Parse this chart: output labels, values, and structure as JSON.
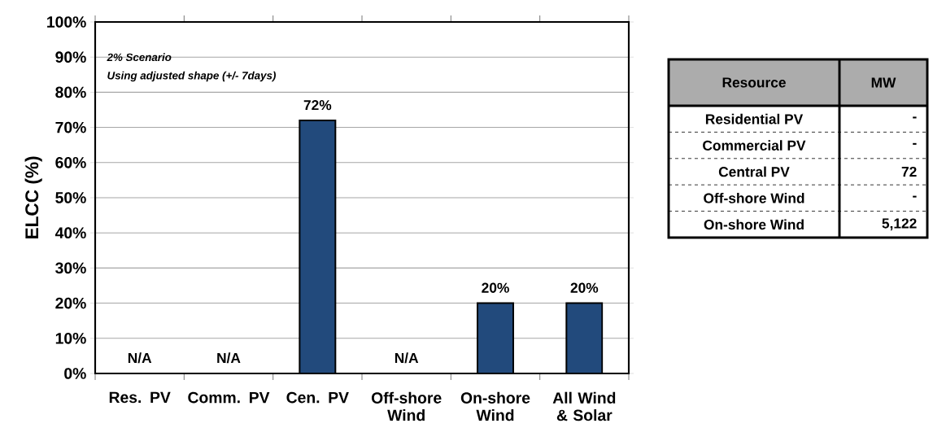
{
  "chart_data": [
    {
      "type": "bar",
      "ylabel": "ELCC (%)",
      "categories": [
        "Res. PV",
        "Comm. PV",
        "Cen. PV",
        "Off-shore Wind",
        "On-shore Wind",
        "All Wind & Solar"
      ],
      "values": [
        null,
        null,
        72,
        null,
        20,
        20
      ],
      "value_labels": [
        "N/A",
        "N/A",
        "72%",
        "N/A",
        "20%",
        "20%"
      ],
      "color": "#224a7c",
      "ylim": [
        0,
        100
      ],
      "yticks": [
        {
          "value": 0,
          "label": "0%"
        },
        {
          "value": 10,
          "label": "10%"
        },
        {
          "value": 20,
          "label": "20%"
        },
        {
          "value": 30,
          "label": "30%"
        },
        {
          "value": 40,
          "label": "40%"
        },
        {
          "value": 50,
          "label": "50%"
        },
        {
          "value": 60,
          "label": "60%"
        },
        {
          "value": 70,
          "label": "70%"
        },
        {
          "value": 80,
          "label": "80%"
        },
        {
          "value": 90,
          "label": "90%"
        },
        {
          "value": 100,
          "label": "100%"
        }
      ],
      "grid": "y",
      "annotations": [
        "2% Scenario",
        "Using adjusted shape (+/- 7days)"
      ]
    },
    {
      "type": "other",
      "xlabel": "Resource",
      "ylabel": "MW",
      "categories": [
        "Residential PV",
        "Commercial PV",
        "Central PV",
        "Off-shore Wind",
        "On-shore  Wind"
      ],
      "values": [
        null,
        null,
        72,
        null,
        5122
      ],
      "value_labels": [
        "-",
        "-",
        "72",
        "-",
        "5,122"
      ]
    }
  ]
}
